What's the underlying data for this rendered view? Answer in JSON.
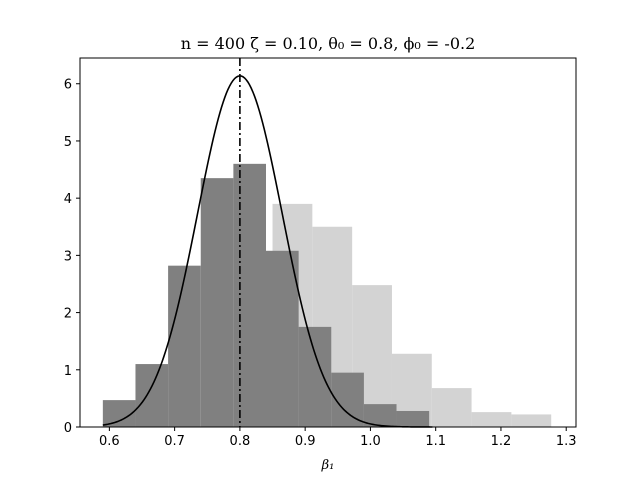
{
  "chart_data": {
    "type": "bar",
    "title": "n = 400 ζ = 0.10,  θ₀ = 0.8, ϕ₀ = -0.2",
    "xlabel": "β₁",
    "ylabel": "",
    "xlim": [
      0.555,
      1.315
    ],
    "ylim": [
      0,
      6.45
    ],
    "xticks": [
      0.6,
      0.7,
      0.8,
      0.9,
      1.0,
      1.1,
      1.2,
      1.3
    ],
    "xtick_labels": [
      "0.6",
      "0.7",
      "0.8",
      "0.9",
      "1.0",
      "1.1",
      "1.2",
      "1.3"
    ],
    "yticks": [
      0,
      1,
      2,
      3,
      4,
      5,
      6
    ],
    "ytick_labels": [
      "0",
      "1",
      "2",
      "3",
      "4",
      "5",
      "6"
    ],
    "grid": false,
    "series": [
      {
        "kind": "histogram",
        "color": "#d3d3d3",
        "bins": [
          {
            "x0": 0.85,
            "x1": 0.911,
            "height": 3.9
          },
          {
            "x0": 0.911,
            "x1": 0.972,
            "height": 3.5
          },
          {
            "x0": 0.972,
            "x1": 1.033,
            "height": 2.48
          },
          {
            "x0": 1.033,
            "x1": 1.094,
            "height": 1.28
          },
          {
            "x0": 1.094,
            "x1": 1.155,
            "height": 0.68
          },
          {
            "x0": 1.155,
            "x1": 1.216,
            "height": 0.26
          },
          {
            "x0": 1.216,
            "x1": 1.277,
            "height": 0.22
          }
        ]
      },
      {
        "kind": "histogram",
        "color": "#808080",
        "bins": [
          {
            "x0": 0.59,
            "x1": 0.64,
            "height": 0.47
          },
          {
            "x0": 0.64,
            "x1": 0.69,
            "height": 1.1
          },
          {
            "x0": 0.69,
            "x1": 0.74,
            "height": 2.82
          },
          {
            "x0": 0.74,
            "x1": 0.79,
            "height": 4.35
          },
          {
            "x0": 0.79,
            "x1": 0.84,
            "height": 4.6
          },
          {
            "x0": 0.84,
            "x1": 0.89,
            "height": 3.08
          },
          {
            "x0": 0.89,
            "x1": 0.94,
            "height": 1.75
          },
          {
            "x0": 0.94,
            "x1": 0.99,
            "height": 0.95
          },
          {
            "x0": 0.99,
            "x1": 1.04,
            "height": 0.4
          },
          {
            "x0": 1.04,
            "x1": 1.09,
            "height": 0.28
          }
        ]
      },
      {
        "kind": "normal-curve",
        "color": "#000000",
        "mean": 0.8,
        "sd": 0.065,
        "x_range": [
          0.59,
          1.095
        ]
      },
      {
        "kind": "vline",
        "color": "#000000",
        "style": "dash-dot",
        "x": 0.8
      }
    ]
  }
}
